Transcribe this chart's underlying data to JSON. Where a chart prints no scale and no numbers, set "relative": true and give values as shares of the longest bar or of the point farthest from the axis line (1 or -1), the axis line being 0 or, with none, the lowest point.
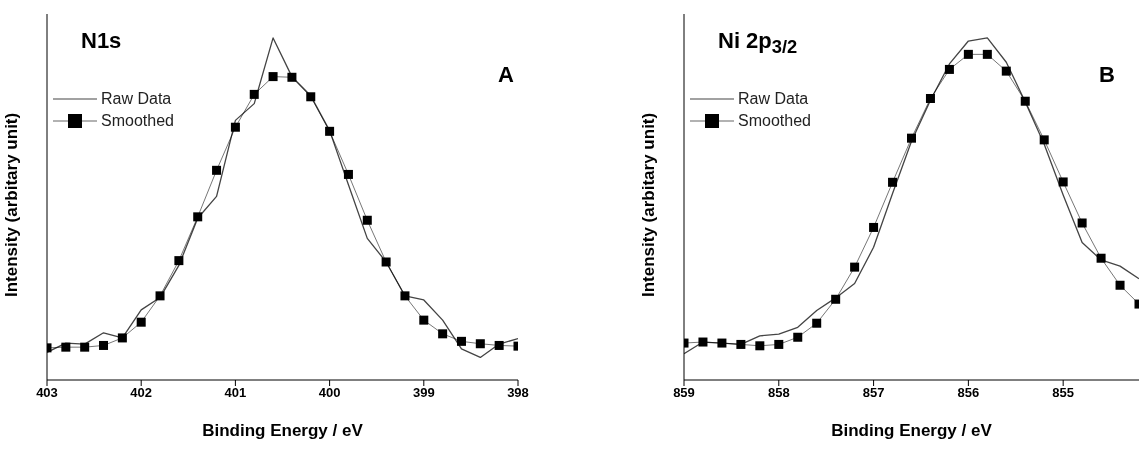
{
  "chart_data": [
    {
      "type": "line",
      "title": "N1s",
      "annotations": [
        "A"
      ],
      "xlabel": "Binding Energy / eV",
      "ylabel": "Intensity (arbitary unit)",
      "relative": true,
      "tick_labels": "x",
      "legend": "top left",
      "xlim": [
        403,
        398
      ],
      "xticks": [
        403,
        402,
        401,
        400,
        399,
        398
      ],
      "x": [
        403,
        402.8,
        402.6,
        402.4,
        402.2,
        402,
        401.8,
        401.6,
        401.4,
        401.2,
        401,
        400.8,
        400.6,
        400.4,
        400.2,
        400,
        399.8,
        399.6,
        399.4,
        399.2,
        399,
        398.8,
        398.6,
        398.4,
        398.2,
        398
      ],
      "series": [
        {
          "name": "Raw Data",
          "color": "#444444",
          "marker": "none",
          "values": [
            0.081,
            0.108,
            0.105,
            0.138,
            0.123,
            0.205,
            0.241,
            0.335,
            0.473,
            0.537,
            0.759,
            0.808,
            1,
            0.887,
            0.831,
            0.729,
            0.571,
            0.414,
            0.345,
            0.246,
            0.234,
            0.175,
            0.091,
            0.066,
            0.105,
            0.121
          ]
        },
        {
          "name": "Smoothed",
          "color": "#000000",
          "marker": "square",
          "values": [
            0.094,
            0.096,
            0.096,
            0.101,
            0.123,
            0.169,
            0.246,
            0.349,
            0.477,
            0.613,
            0.739,
            0.835,
            0.887,
            0.885,
            0.828,
            0.727,
            0.601,
            0.467,
            0.345,
            0.246,
            0.175,
            0.135,
            0.113,
            0.106,
            0.101,
            0.099
          ]
        }
      ]
    },
    {
      "type": "line",
      "title": "Ni 2p$_{3/2}$",
      "annotations": [
        "B"
      ],
      "xlabel": "Binding Energy / eV",
      "ylabel": "Intensity (arbitary unit)",
      "relative": true,
      "tick_labels": "x",
      "legend": "top left",
      "xlim": [
        859,
        854.2
      ],
      "xticks": [
        859,
        858,
        857,
        856,
        855
      ],
      "x": [
        859,
        858.8,
        858.6,
        858.4,
        858.2,
        858,
        857.8,
        857.6,
        857.4,
        857.2,
        857,
        856.8,
        856.6,
        856.4,
        856.2,
        856,
        855.8,
        855.6,
        855.4,
        855.2,
        855,
        854.8,
        854.6,
        854.4,
        854.2
      ],
      "series": [
        {
          "name": "Raw Data",
          "color": "#444444",
          "marker": "none",
          "values": [
            0.077,
            0.111,
            0.108,
            0.104,
            0.129,
            0.134,
            0.154,
            0.203,
            0.24,
            0.282,
            0.388,
            0.545,
            0.698,
            0.818,
            0.924,
            0.991,
            1,
            0.929,
            0.813,
            0.689,
            0.541,
            0.402,
            0.351,
            0.333,
            0.296
          ]
        },
        {
          "name": "Smoothed",
          "color": "#000000",
          "marker": "square",
          "values": [
            0.108,
            0.111,
            0.108,
            0.104,
            0.1,
            0.104,
            0.125,
            0.166,
            0.236,
            0.33,
            0.446,
            0.578,
            0.707,
            0.823,
            0.908,
            0.952,
            0.952,
            0.903,
            0.815,
            0.702,
            0.579,
            0.459,
            0.356,
            0.277,
            0.222
          ]
        }
      ]
    }
  ]
}
